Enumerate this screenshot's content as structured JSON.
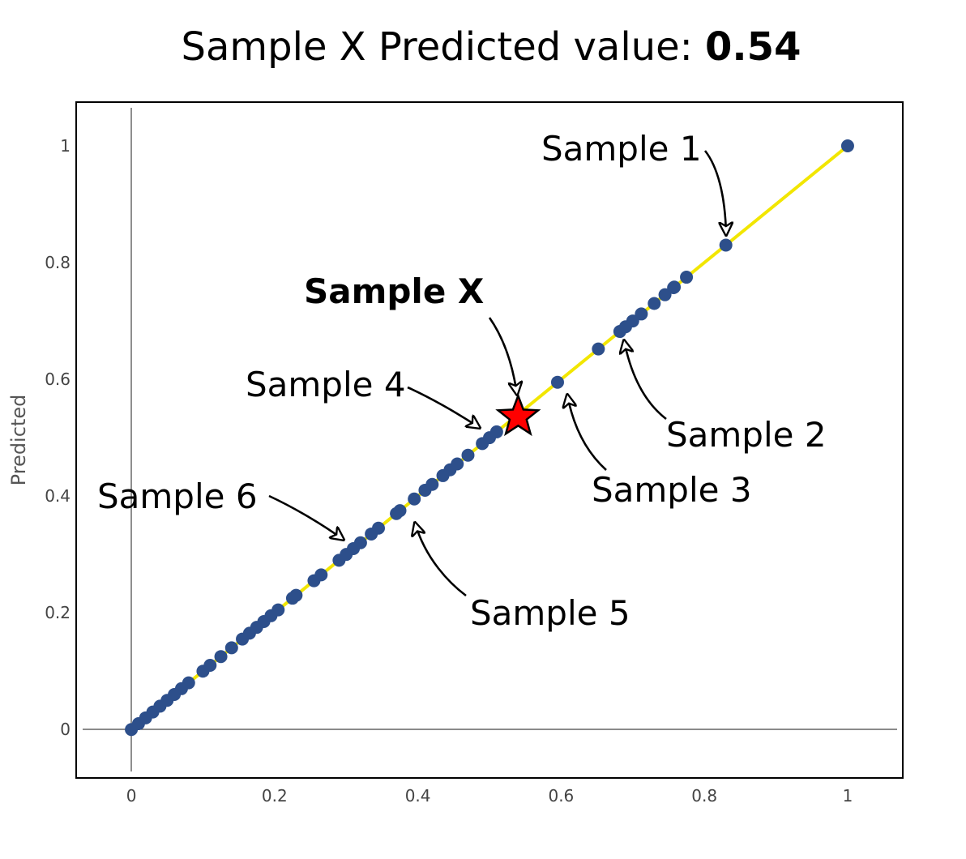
{
  "header": {
    "title_prefix": "Sample X Predicted value: ",
    "title_value": "0.54"
  },
  "chart_data": {
    "type": "scatter",
    "title": "Sample X Predicted value: 0.54",
    "xlabel": "",
    "ylabel": "Predicted",
    "xlim": [
      -0.077,
      1.077
    ],
    "ylim": [
      -0.083,
      1.075
    ],
    "xticks": [
      0,
      0.2,
      0.4,
      0.6,
      0.8,
      1
    ],
    "xtick_labels": [
      "0",
      "0.2",
      "0.4",
      "0.6",
      "0.8",
      "1"
    ],
    "yticks": [
      0,
      0.2,
      0.4,
      0.6,
      0.8,
      1
    ],
    "ytick_labels": [
      "0",
      "0.2",
      "0.4",
      "0.6",
      "0.8",
      "1"
    ],
    "grid": false,
    "line_color": "#f2e600",
    "point_color": "#2d4f8b",
    "star_color": "#ff0000",
    "points": [
      0,
      0.01,
      0.02,
      0.03,
      0.04,
      0.05,
      0.06,
      0.07,
      0.08,
      0.1,
      0.11,
      0.125,
      0.14,
      0.155,
      0.165,
      0.175,
      0.185,
      0.195,
      0.205,
      0.225,
      0.23,
      0.255,
      0.265,
      0.29,
      0.3,
      0.31,
      0.32,
      0.335,
      0.345,
      0.37,
      0.375,
      0.395,
      0.41,
      0.42,
      0.435,
      0.445,
      0.455,
      0.47,
      0.49,
      0.5,
      0.51,
      0.595,
      0.652,
      0.682,
      0.69,
      0.7,
      0.712,
      0.73,
      0.745,
      0.757,
      0.758,
      0.775,
      0.83,
      1
    ],
    "highlight": {
      "name": "Sample X",
      "x": 0.54,
      "y": 0.54
    },
    "annotations": [
      {
        "label": "Sample 1",
        "x": 0.83,
        "y": 0.83
      },
      {
        "label": "Sample 2",
        "x": 0.69,
        "y": 0.69
      },
      {
        "label": "Sample 3",
        "x": 0.6,
        "y": 0.6
      },
      {
        "label": "Sample 4",
        "x": 0.5,
        "y": 0.5
      },
      {
        "label": "Sample 5",
        "x": 0.4,
        "y": 0.4
      },
      {
        "label": "Sample 6",
        "x": 0.3,
        "y": 0.3
      },
      {
        "label": "Sample X",
        "x": 0.54,
        "y": 0.54
      }
    ]
  }
}
